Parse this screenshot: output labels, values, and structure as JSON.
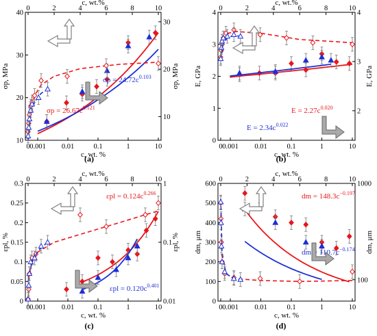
{
  "colors": {
    "red": "#e8161b",
    "blue": "#1d2fd6",
    "axis": "#000000",
    "grid": "#b9b9b9",
    "arrow": "#808080"
  },
  "chart_data": [
    {
      "id": "a",
      "panel_label": "(a)",
      "type": "scatter",
      "top_xlabel": "c, wt.%",
      "bottom_xlabel": "c, wt. %",
      "top_ticks": [
        "0",
        "2",
        "4",
        "6",
        "8",
        "10"
      ],
      "bottom_ticks": [
        "0",
        "0.001",
        "0.01",
        "0.1",
        "1",
        "10"
      ],
      "left_ylabel": "σp, MPa",
      "right_ylabel": "σp, MPa",
      "left_ticks": [
        "10",
        "20",
        "30",
        "40"
      ],
      "right_ticks": [
        "10",
        "20",
        "30"
      ],
      "left_ylim": [
        10,
        40
      ],
      "right_ylim": [
        5,
        32
      ],
      "top_xlim": [
        0,
        10
      ],
      "bottom_xlim": [
        0.0001,
        10
      ],
      "fit_labels": [
        {
          "text": "σp = 24.72c",
          "exp": "0.103",
          "color": "blue"
        },
        {
          "text": "σp = 26.67c",
          "exp": "0.121",
          "color": "red"
        }
      ],
      "series": [
        {
          "name": "red-bottom",
          "color": "red",
          "marker": "diamond",
          "filled": true,
          "axis": "bottom-log",
          "points": [
            [
              0.002,
              14.4
            ],
            [
              0.009,
              18.8
            ],
            [
              0.03,
              20.8
            ],
            [
              0.09,
              22.6
            ],
            [
              0.2,
              24.3
            ],
            [
              1,
              32.9
            ],
            [
              8,
              35.2
            ]
          ],
          "fit": {
            "a": 26.67,
            "b": 0.121,
            "from": 0.001,
            "to": 10
          }
        },
        {
          "name": "blue-bottom",
          "color": "blue",
          "marker": "triangle",
          "filled": true,
          "axis": "bottom-log",
          "points": [
            [
              0.002,
              14.4
            ],
            [
              0.03,
              21.4
            ],
            [
              0.2,
              26.3
            ],
            [
              1,
              32.1
            ],
            [
              5,
              34.2
            ]
          ],
          "fit": {
            "a": 24.72,
            "b": 0.103,
            "from": 0.001,
            "to": 10
          }
        },
        {
          "name": "red-top",
          "color": "red",
          "marker": "diamond",
          "filled": false,
          "axis": "top-linear",
          "points": [
            [
              0,
              12
            ],
            [
              0.05,
              14
            ],
            [
              0.1,
              16
            ],
            [
              0.2,
              18
            ],
            [
              0.3,
              19
            ],
            [
              0.5,
              20.5
            ],
            [
              1,
              24
            ],
            [
              3,
              25
            ],
            [
              6,
              27.5
            ],
            [
              10,
              28
            ]
          ],
          "curve": [
            [
              0,
              10
            ],
            [
              0.2,
              17
            ],
            [
              0.5,
              20.5
            ],
            [
              1,
              23
            ],
            [
              2,
              25
            ],
            [
              4,
              26.8
            ],
            [
              7,
              27.8
            ],
            [
              10,
              28.3
            ]
          ]
        },
        {
          "name": "blue-top",
          "color": "blue",
          "marker": "triangle",
          "filled": false,
          "axis": "top-linear",
          "points": [
            [
              0,
              11
            ],
            [
              0.05,
              13
            ],
            [
              0.1,
              15
            ],
            [
              0.2,
              17
            ],
            [
              0.3,
              18.5
            ],
            [
              0.8,
              20
            ],
            [
              1.5,
              22
            ]
          ],
          "curve": [
            [
              0,
              10
            ],
            [
              0.2,
              16
            ],
            [
              0.5,
              19
            ],
            [
              1,
              21
            ],
            [
              1.5,
              22
            ]
          ]
        }
      ]
    },
    {
      "id": "b",
      "panel_label": "(b)",
      "type": "scatter",
      "top_xlabel": "c, wt.%",
      "bottom_xlabel": "c, wt. %",
      "top_ticks": [
        "0",
        "2",
        "4",
        "6",
        "8",
        "10"
      ],
      "bottom_ticks": [
        "0",
        "0.001",
        "0.01",
        "0.1",
        "1",
        "10"
      ],
      "left_ylabel": "E, GPa",
      "right_ylabel": "E, GPa",
      "left_ticks": [
        "0",
        "1",
        "2",
        "3",
        "4"
      ],
      "right_ticks": [
        "2",
        "3",
        "4"
      ],
      "left_ylim": [
        0,
        4
      ],
      "right_ylim": [
        1.4,
        4
      ],
      "top_xlim": [
        0,
        10
      ],
      "bottom_xlim": [
        0.0001,
        10
      ],
      "fit_labels": [
        {
          "text": "E = 2.27c",
          "exp": "0.020",
          "color": "red"
        },
        {
          "text": "E = 2.34c",
          "exp": "0.022",
          "color": "blue"
        }
      ],
      "series": [
        {
          "name": "red-bottom",
          "color": "red",
          "marker": "diamond",
          "filled": true,
          "axis": "bottom-log",
          "points": [
            [
              0.002,
              2.05
            ],
            [
              0.009,
              2.1
            ],
            [
              0.03,
              2.1
            ],
            [
              0.1,
              2.4
            ],
            [
              0.3,
              2.2
            ],
            [
              1,
              2.7
            ],
            [
              3,
              2.45
            ],
            [
              8,
              2.4
            ]
          ],
          "fit": {
            "a": 2.27,
            "b": 0.02,
            "from": 0.0009,
            "to": 10
          }
        },
        {
          "name": "blue-bottom",
          "color": "blue",
          "marker": "triangle",
          "filled": true,
          "axis": "bottom-log",
          "points": [
            [
              0.002,
              2.1
            ],
            [
              0.03,
              2.15
            ],
            [
              0.3,
              2.5
            ],
            [
              1,
              2.6
            ],
            [
              2,
              2.5
            ]
          ],
          "fit": {
            "a": 2.34,
            "b": 0.022,
            "from": 0.0009,
            "to": 2
          }
        },
        {
          "name": "red-top",
          "color": "red",
          "marker": "diamond",
          "filled": false,
          "axis": "top-linear",
          "points": [
            [
              0,
              2.6
            ],
            [
              0.05,
              2.8
            ],
            [
              0.1,
              3.0
            ],
            [
              0.2,
              3.2
            ],
            [
              0.4,
              3.35
            ],
            [
              1,
              3.45
            ],
            [
              3,
              3.3
            ],
            [
              5,
              3.2
            ],
            [
              7,
              3.05
            ],
            [
              10,
              3.0
            ]
          ],
          "curve": [
            [
              0,
              2.5
            ],
            [
              0.2,
              3.1
            ],
            [
              0.6,
              3.35
            ],
            [
              1.2,
              3.4
            ],
            [
              3,
              3.35
            ],
            [
              6,
              3.15
            ],
            [
              10,
              3.05
            ]
          ]
        },
        {
          "name": "blue-top",
          "color": "blue",
          "marker": "triangle",
          "filled": false,
          "axis": "top-linear",
          "points": [
            [
              0,
              2.55
            ],
            [
              0.05,
              2.9
            ],
            [
              0.1,
              3.1
            ],
            [
              0.2,
              3.2
            ],
            [
              0.5,
              3.25
            ],
            [
              1,
              3.3
            ],
            [
              1.5,
              3.25
            ]
          ],
          "curve": [
            [
              0,
              2.5
            ],
            [
              0.2,
              3.05
            ],
            [
              0.5,
              3.2
            ],
            [
              1,
              3.28
            ],
            [
              1.5,
              3.25
            ]
          ]
        }
      ]
    },
    {
      "id": "c",
      "panel_label": "(c)",
      "type": "scatter",
      "top_xlabel": "c, wt.%",
      "bottom_xlabel": "c, wt. %",
      "top_ticks": [
        "0",
        "2",
        "4",
        "6",
        "8",
        "10"
      ],
      "bottom_ticks": [
        "0",
        "0.001",
        "0.01",
        "0.1",
        "1",
        "10"
      ],
      "left_ylabel": "εpl, %",
      "right_ylabel": "εpl, %",
      "left_ticks": [
        "0",
        "0.05",
        "0.1",
        "0.15",
        "0.2",
        "0.25",
        "0.3"
      ],
      "right_ticks": [
        "0.01",
        "0.1",
        "1"
      ],
      "left_ylim": [
        0,
        0.3
      ],
      "right_ylim": [
        0.01,
        1
      ],
      "top_xlim": [
        0,
        10
      ],
      "bottom_xlim": [
        0.0001,
        10
      ],
      "fit_labels": [
        {
          "text": "εpl = 0.124c",
          "exp": "0.266",
          "color": "red"
        },
        {
          "text": "εpl = 0.120c",
          "exp": "0.401",
          "color": "blue"
        }
      ],
      "series": [
        {
          "name": "red-bottom",
          "color": "red",
          "marker": "diamond",
          "filled": true,
          "axis": "bottom-log",
          "points": [
            [
              0.009,
              0.03
            ],
            [
              0.03,
              0.05
            ],
            [
              0.1,
              0.11
            ],
            [
              0.3,
              0.1
            ],
            [
              1,
              0.13
            ],
            [
              2,
              0.12
            ],
            [
              4,
              0.18
            ],
            [
              8,
              0.21
            ]
          ],
          "fit": {
            "a": 0.124,
            "b": 0.266,
            "from": 0.03,
            "to": 10
          }
        },
        {
          "name": "blue-bottom",
          "color": "blue",
          "marker": "triangle",
          "filled": true,
          "axis": "bottom-log",
          "points": [
            [
              0.03,
              0.025
            ],
            [
              0.1,
              0.06
            ],
            [
              0.4,
              0.08
            ],
            [
              1,
              0.11
            ],
            [
              2,
              0.14
            ]
          ],
          "fit": {
            "a": 0.12,
            "b": 0.401,
            "from": 0.03,
            "to": 2
          }
        },
        {
          "name": "red-top",
          "color": "red",
          "marker": "diamond",
          "filled": false,
          "axis": "top-linear",
          "points": [
            [
              0,
              0.005
            ],
            [
              0.05,
              0.03
            ],
            [
              0.1,
              0.07
            ],
            [
              0.3,
              0.11
            ],
            [
              0.6,
              0.12
            ],
            [
              4,
              0.22
            ],
            [
              6,
              0.19
            ],
            [
              9,
              0.22
            ],
            [
              10,
              0.25
            ]
          ],
          "curve": [
            [
              0,
              0.06
            ],
            [
              0.5,
              0.12
            ],
            [
              2,
              0.15
            ],
            [
              4,
              0.17
            ],
            [
              6,
              0.19
            ],
            [
              8,
              0.21
            ],
            [
              10,
              0.23
            ]
          ]
        },
        {
          "name": "blue-top",
          "color": "blue",
          "marker": "triangle",
          "filled": false,
          "axis": "top-linear",
          "points": [
            [
              0,
              0.005
            ],
            [
              0.05,
              0.04
            ],
            [
              0.1,
              0.07
            ],
            [
              0.2,
              0.1
            ],
            [
              0.5,
              0.11
            ],
            [
              1,
              0.14
            ],
            [
              1.5,
              0.15
            ]
          ],
          "curve": [
            [
              0,
              0.05
            ],
            [
              0.3,
              0.1
            ],
            [
              0.8,
              0.13
            ],
            [
              1.5,
              0.15
            ]
          ]
        }
      ]
    },
    {
      "id": "d",
      "panel_label": "(d)",
      "type": "scatter",
      "top_xlabel": "c, wt.%",
      "bottom_xlabel": "c, wt. %",
      "top_ticks": [
        "0",
        "2",
        "4",
        "6",
        "8",
        "10"
      ],
      "bottom_ticks": [
        "0",
        "0.001",
        "0.01",
        "0.1",
        "1",
        "10"
      ],
      "left_ylabel": "dm, μm",
      "right_ylabel": "dm, μm",
      "left_ticks": [
        "0",
        "100",
        "200",
        "300",
        "400",
        "500",
        "600"
      ],
      "right_ticks": [
        "100",
        "1000"
      ],
      "left_ylim": [
        0,
        600
      ],
      "right_ylim": [
        60,
        1000
      ],
      "top_xlim": [
        0,
        10
      ],
      "bottom_xlim": [
        0.0001,
        10
      ],
      "fit_labels": [
        {
          "text": "dm = 148.3c",
          "exp": "−0.197",
          "color": "red"
        },
        {
          "text": "dm = 110.7c",
          "exp": "−0.174",
          "color": "blue"
        }
      ],
      "series": [
        {
          "name": "red-bottom",
          "color": "red",
          "marker": "diamond",
          "filled": true,
          "axis": "bottom-log",
          "points": [
            [
              0.003,
              550
            ],
            [
              0.01,
              500
            ],
            [
              0.03,
              430
            ],
            [
              0.1,
              400
            ],
            [
              0.3,
              390
            ],
            [
              1,
              300
            ],
            [
              3,
              270
            ],
            [
              8,
              330
            ]
          ],
          "fit": {
            "a": 148.3,
            "b": -0.197,
            "from": 0.003,
            "to": 8
          }
        },
        {
          "name": "blue-bottom",
          "color": "blue",
          "marker": "triangle",
          "filled": true,
          "axis": "bottom-log",
          "points": [
            [
              0.003,
              470
            ],
            [
              0.03,
              400
            ],
            [
              0.3,
              300
            ],
            [
              1,
              280
            ]
          ],
          "fit": {
            "a": 110.7,
            "b": -0.174,
            "from": 0.003,
            "to": 1
          }
        },
        {
          "name": "red-top",
          "color": "red",
          "marker": "diamond",
          "filled": false,
          "axis": "top-linear",
          "points": [
            [
              0,
              500
            ],
            [
              0.02,
              420
            ],
            [
              0.05,
              300
            ],
            [
              0.1,
              200
            ],
            [
              0.3,
              140
            ],
            [
              1,
              120
            ],
            [
              3,
              115
            ],
            [
              6,
              100
            ],
            [
              10,
              150
            ]
          ],
          "curve": [
            [
              0,
              520
            ],
            [
              0.1,
              250
            ],
            [
              0.4,
              140
            ],
            [
              1,
              115
            ],
            [
              3,
              105
            ],
            [
              6,
              100
            ],
            [
              10,
              105
            ]
          ]
        },
        {
          "name": "blue-top",
          "color": "blue",
          "marker": "triangle",
          "filled": false,
          "axis": "top-linear",
          "points": [
            [
              0,
              505
            ],
            [
              0.02,
              400
            ],
            [
              0.05,
              280
            ],
            [
              0.1,
              200
            ],
            [
              0.3,
              150
            ],
            [
              1,
              115
            ],
            [
              1.5,
              110
            ]
          ],
          "curve": [
            [
              0,
              520
            ],
            [
              0.1,
              230
            ],
            [
              0.4,
              140
            ],
            [
              1,
              115
            ],
            [
              1.5,
              110
            ]
          ]
        }
      ]
    }
  ]
}
